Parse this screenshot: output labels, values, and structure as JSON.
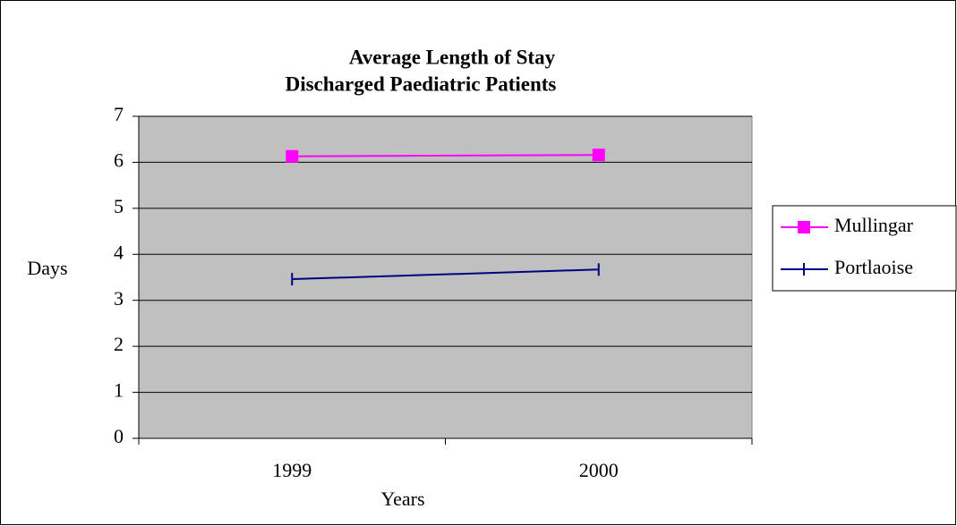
{
  "chart_data": {
    "type": "line",
    "title": "Average Length of Stay",
    "subtitle": "Discharged Paediatric Patients",
    "x_label": "Years",
    "y_label": "Days",
    "categories": [
      "1999",
      "2000"
    ],
    "series": [
      {
        "name": "Mullingar",
        "color": "#ff00ff",
        "marker": "square",
        "values": [
          6.13,
          6.16
        ]
      },
      {
        "name": "Portlaoise",
        "color": "#000080",
        "marker": "vline",
        "values": [
          3.46,
          3.67
        ]
      }
    ],
    "ylim": [
      0,
      7
    ],
    "yticks": [
      0,
      1,
      2,
      3,
      4,
      5,
      6,
      7
    ],
    "grid": true,
    "legend": "right"
  }
}
